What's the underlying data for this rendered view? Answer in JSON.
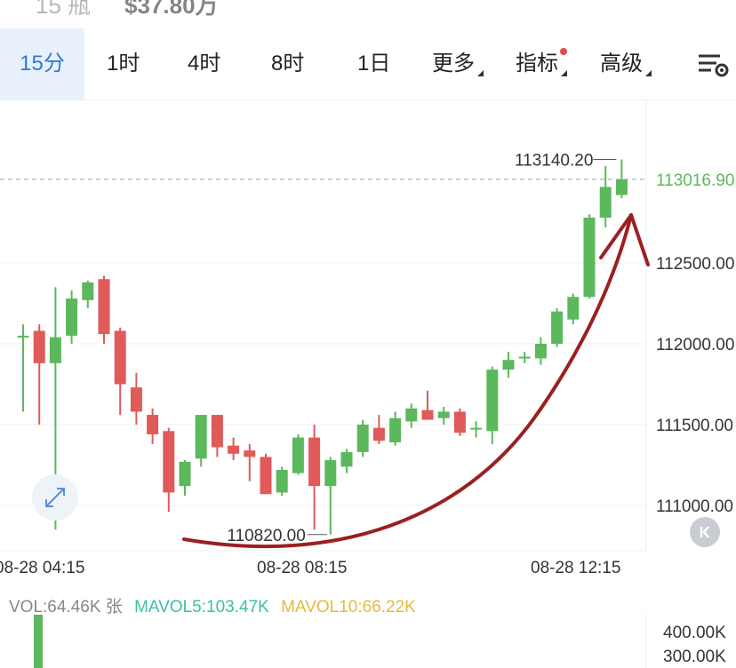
{
  "header": {
    "partial_title_left": "15 瓶",
    "partial_title_right": "$37.80万"
  },
  "tabs": [
    {
      "label": "15分",
      "active": true
    },
    {
      "label": "1时"
    },
    {
      "label": "4时"
    },
    {
      "label": "8时"
    },
    {
      "label": "1日"
    },
    {
      "label": "更多",
      "dropdown": true
    },
    {
      "label": "指标",
      "dropdown": true,
      "badge": true
    },
    {
      "label": "高级",
      "dropdown": true
    }
  ],
  "icons": {
    "settings": "chart-settings-icon",
    "expand": "expand-icon",
    "nav": "scroll-to-latest-icon"
  },
  "colors": {
    "up": "#5cb85c",
    "down": "#e05a5a",
    "accent": "#2e7ad1",
    "annotation_arrow": "#9b2020",
    "mavol5": "#3cbfa6",
    "mavol10": "#e8b93c"
  },
  "chart_data": {
    "type": "candlestick",
    "x_tick_labels": [
      "08-28 04:15",
      "08-28 08:15",
      "08-28 12:15"
    ],
    "y_tick_labels": [
      "112500.00",
      "112000.00",
      "111500.00",
      "111000.00"
    ],
    "ylim": [
      110750,
      113300
    ],
    "current_price": "113016.90",
    "max_label": "113140.20",
    "min_label": "110820.00",
    "candles": [
      {
        "o": 112050,
        "h": 112120,
        "l": 111580,
        "c": 112050
      },
      {
        "o": 112080,
        "h": 112120,
        "l": 111500,
        "c": 111880
      },
      {
        "o": 111880,
        "h": 112350,
        "l": 110850,
        "c": 112040
      },
      {
        "o": 112050,
        "h": 112330,
        "l": 112000,
        "c": 112280
      },
      {
        "o": 112270,
        "h": 112390,
        "l": 112220,
        "c": 112380
      },
      {
        "o": 112400,
        "h": 112420,
        "l": 112000,
        "c": 112060
      },
      {
        "o": 112080,
        "h": 112100,
        "l": 111560,
        "c": 111750
      },
      {
        "o": 111730,
        "h": 111820,
        "l": 111500,
        "c": 111580
      },
      {
        "o": 111560,
        "h": 111600,
        "l": 111380,
        "c": 111440
      },
      {
        "o": 111460,
        "h": 111480,
        "l": 110960,
        "c": 111080
      },
      {
        "o": 111120,
        "h": 111280,
        "l": 111060,
        "c": 111270
      },
      {
        "o": 111290,
        "h": 111560,
        "l": 111240,
        "c": 111560
      },
      {
        "o": 111560,
        "h": 111560,
        "l": 111300,
        "c": 111360
      },
      {
        "o": 111370,
        "h": 111420,
        "l": 111280,
        "c": 111320
      },
      {
        "o": 111340,
        "h": 111380,
        "l": 111150,
        "c": 111300
      },
      {
        "o": 111300,
        "h": 111320,
        "l": 111070,
        "c": 111070
      },
      {
        "o": 111080,
        "h": 111240,
        "l": 111060,
        "c": 111220
      },
      {
        "o": 111200,
        "h": 111440,
        "l": 111190,
        "c": 111420
      },
      {
        "o": 111420,
        "h": 111500,
        "l": 110850,
        "c": 111120
      },
      {
        "o": 111120,
        "h": 111300,
        "l": 110820,
        "c": 111280
      },
      {
        "o": 111240,
        "h": 111350,
        "l": 111200,
        "c": 111330
      },
      {
        "o": 111330,
        "h": 111530,
        "l": 111300,
        "c": 111500
      },
      {
        "o": 111480,
        "h": 111560,
        "l": 111380,
        "c": 111400
      },
      {
        "o": 111390,
        "h": 111580,
        "l": 111370,
        "c": 111540
      },
      {
        "o": 111520,
        "h": 111630,
        "l": 111480,
        "c": 111600
      },
      {
        "o": 111590,
        "h": 111710,
        "l": 111530,
        "c": 111530
      },
      {
        "o": 111540,
        "h": 111610,
        "l": 111500,
        "c": 111580
      },
      {
        "o": 111580,
        "h": 111600,
        "l": 111430,
        "c": 111450
      },
      {
        "o": 111480,
        "h": 111520,
        "l": 111420,
        "c": 111480
      },
      {
        "o": 111460,
        "h": 111860,
        "l": 111380,
        "c": 111840
      },
      {
        "o": 111840,
        "h": 111950,
        "l": 111790,
        "c": 111900
      },
      {
        "o": 111920,
        "h": 111950,
        "l": 111880,
        "c": 111920
      },
      {
        "o": 111910,
        "h": 112040,
        "l": 111870,
        "c": 112000
      },
      {
        "o": 112000,
        "h": 112220,
        "l": 111980,
        "c": 112200
      },
      {
        "o": 112150,
        "h": 112310,
        "l": 112120,
        "c": 112290
      },
      {
        "o": 112290,
        "h": 112800,
        "l": 112280,
        "c": 112780
      },
      {
        "o": 112780,
        "h": 113100,
        "l": 112720,
        "c": 112970
      },
      {
        "o": 112920,
        "h": 113140,
        "l": 112900,
        "c": 113017
      }
    ]
  },
  "volume": {
    "vol_label": "VOL:64.46K 张",
    "mavol5_label": "MAVOL5:103.47K",
    "mavol10_label": "MAVOL10:66.22K",
    "y_tick_labels": [
      "400.00K",
      "300.00K"
    ]
  }
}
